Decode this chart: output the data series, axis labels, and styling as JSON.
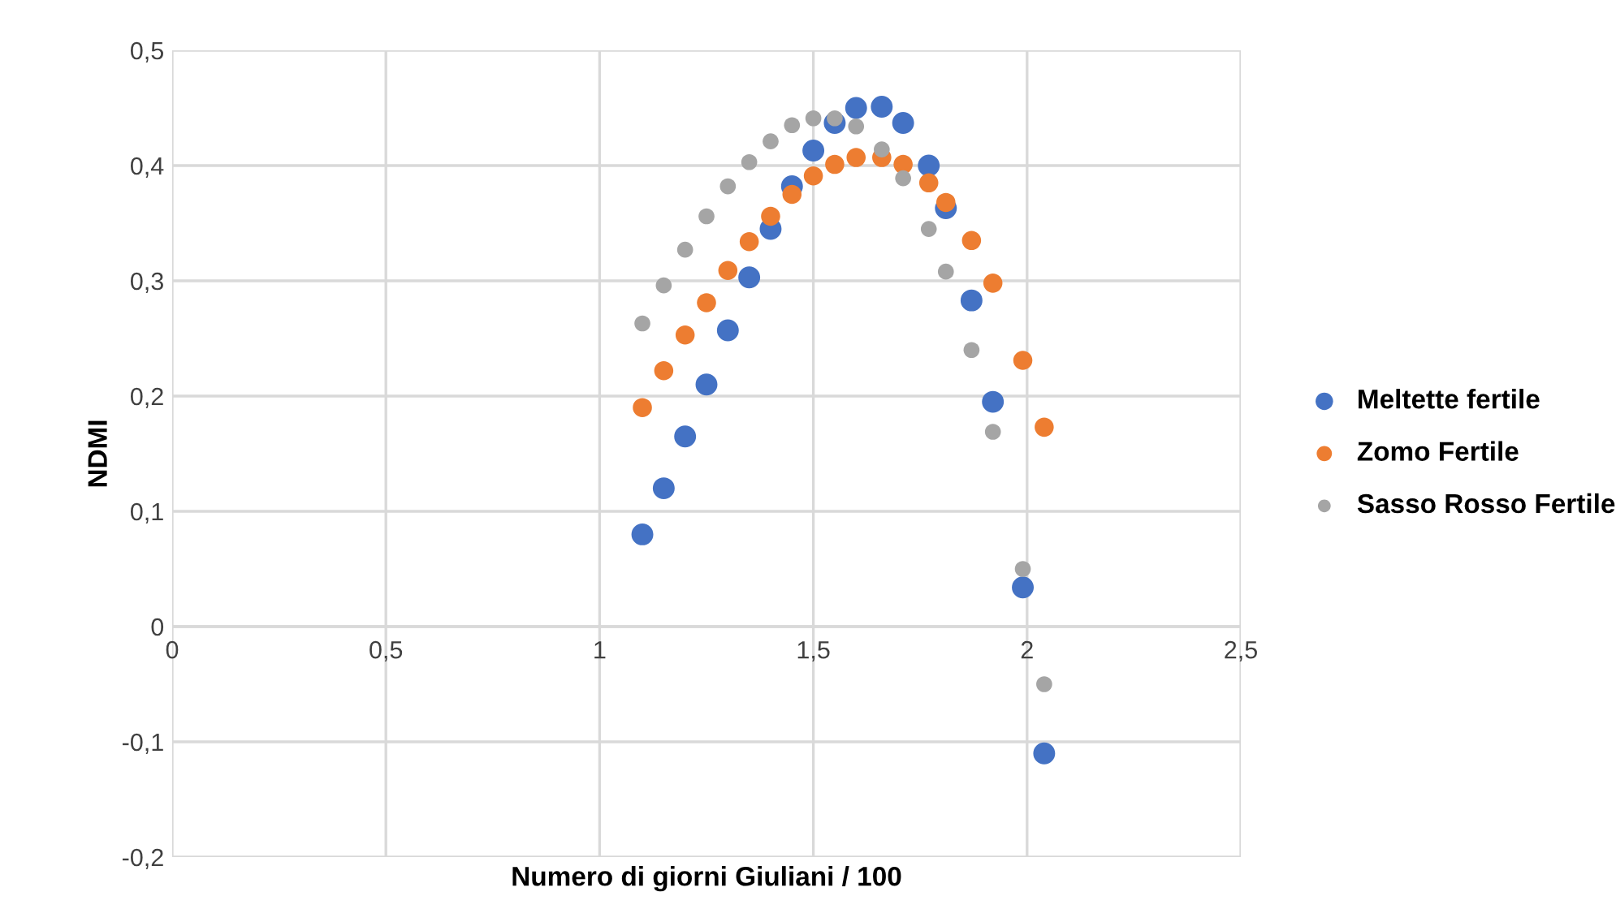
{
  "chart_data": {
    "type": "scatter",
    "xlabel": "Numero di giorni Giuliani / 100",
    "ylabel": "NDMI",
    "x": [
      1.1,
      1.15,
      1.2,
      1.25,
      1.3,
      1.35,
      1.4,
      1.45,
      1.5,
      1.55,
      1.6,
      1.66,
      1.71,
      1.77,
      1.81,
      1.87,
      1.92,
      1.99,
      2.04
    ],
    "series": [
      {
        "name": "Meltette fertile",
        "color": "#4472c4",
        "values": [
          0.08,
          0.12,
          0.165,
          0.21,
          0.257,
          0.303,
          0.345,
          0.382,
          0.413,
          0.437,
          0.45,
          0.451,
          0.437,
          0.4,
          0.363,
          0.283,
          0.195,
          0.034,
          -0.11
        ]
      },
      {
        "name": "Zomo Fertile",
        "color": "#ed7d31",
        "values": [
          0.19,
          0.222,
          0.253,
          0.281,
          0.309,
          0.334,
          0.356,
          0.375,
          0.391,
          0.401,
          0.407,
          0.407,
          0.401,
          0.385,
          0.368,
          0.335,
          0.298,
          0.231,
          0.173
        ]
      },
      {
        "name": "Sasso Rosso Fertile",
        "color": "#a5a5a5",
        "values": [
          0.263,
          0.296,
          0.327,
          0.356,
          0.382,
          0.403,
          0.421,
          0.435,
          0.441,
          0.441,
          0.434,
          0.414,
          0.389,
          0.345,
          0.308,
          0.24,
          0.169,
          0.05,
          -0.05
        ]
      }
    ],
    "xlim": [
      0,
      2.5
    ],
    "xticks": [
      0,
      {
        "value": 0.5,
        "label": "0,5"
      },
      1,
      {
        "value": 1.5,
        "label": "1,5"
      },
      2,
      {
        "value": 2.5,
        "label": "2,5"
      }
    ],
    "ylim": [
      -0.2,
      0.5
    ],
    "yticks": [
      {
        "value": -0.2,
        "label": "-0,2"
      },
      {
        "value": -0.1,
        "label": "-0,1"
      },
      0,
      {
        "value": 0.1,
        "label": "0,1"
      },
      {
        "value": 0.2,
        "label": "0,2"
      },
      {
        "value": 0.3,
        "label": "0,3"
      },
      {
        "value": 0.4,
        "label": "0,4"
      },
      {
        "value": 0.5,
        "label": "0,5"
      }
    ],
    "grid": true,
    "legend": "right",
    "marker": "circle"
  }
}
